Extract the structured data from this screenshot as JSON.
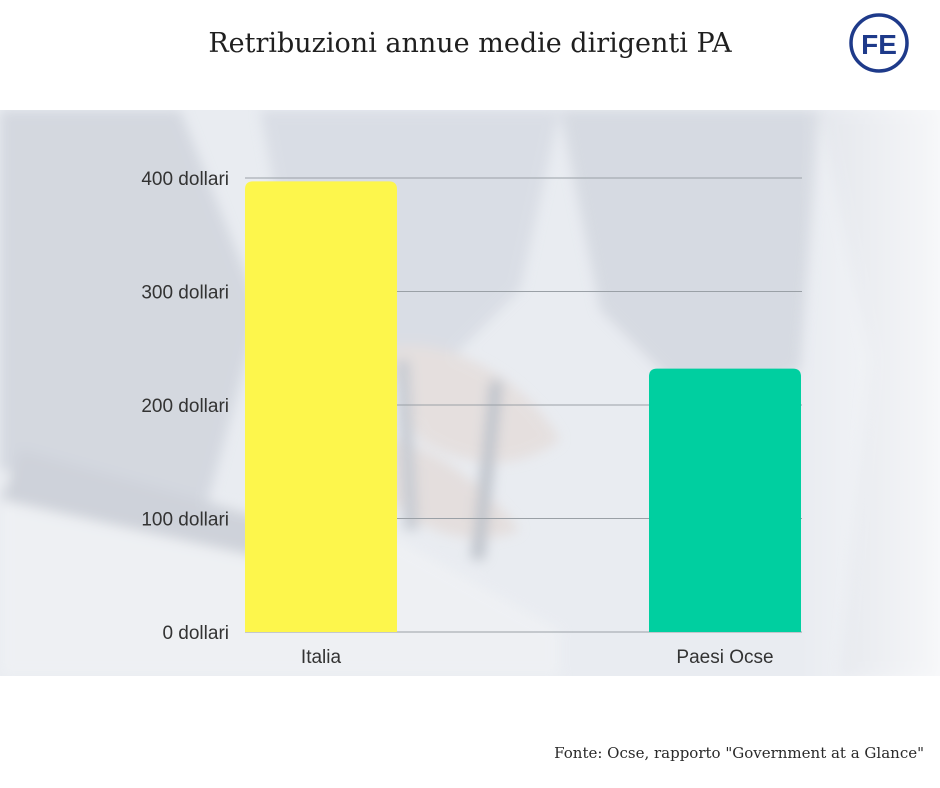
{
  "header": {
    "title": "Retribuzioni annue medie dirigenti PA",
    "logo_text": "FE",
    "logo_color": "#1e3a8a"
  },
  "footer": {
    "source": "Fonte: Ocse,  rapporto \"Government at a Glance\""
  },
  "chart_data": {
    "type": "bar",
    "title": "Retribuzioni annue medie dirigenti PA",
    "xlabel": "",
    "ylabel": "",
    "categories": [
      "Italia",
      "Paesi Ocse"
    ],
    "values": [
      397,
      232
    ],
    "colors": [
      "#fdf64c",
      "#00cfa0"
    ],
    "ylim": [
      0,
      400
    ],
    "yticks": [
      {
        "value": 0,
        "label": "0 dollari"
      },
      {
        "value": 100,
        "label": "100 dollari"
      },
      {
        "value": 200,
        "label": "200 dollari"
      },
      {
        "value": 300,
        "label": "300 dollari"
      },
      {
        "value": 400,
        "label": "400 dollari"
      }
    ],
    "grid": true,
    "legend": "none",
    "gridline_color": "#9aa0a6"
  }
}
